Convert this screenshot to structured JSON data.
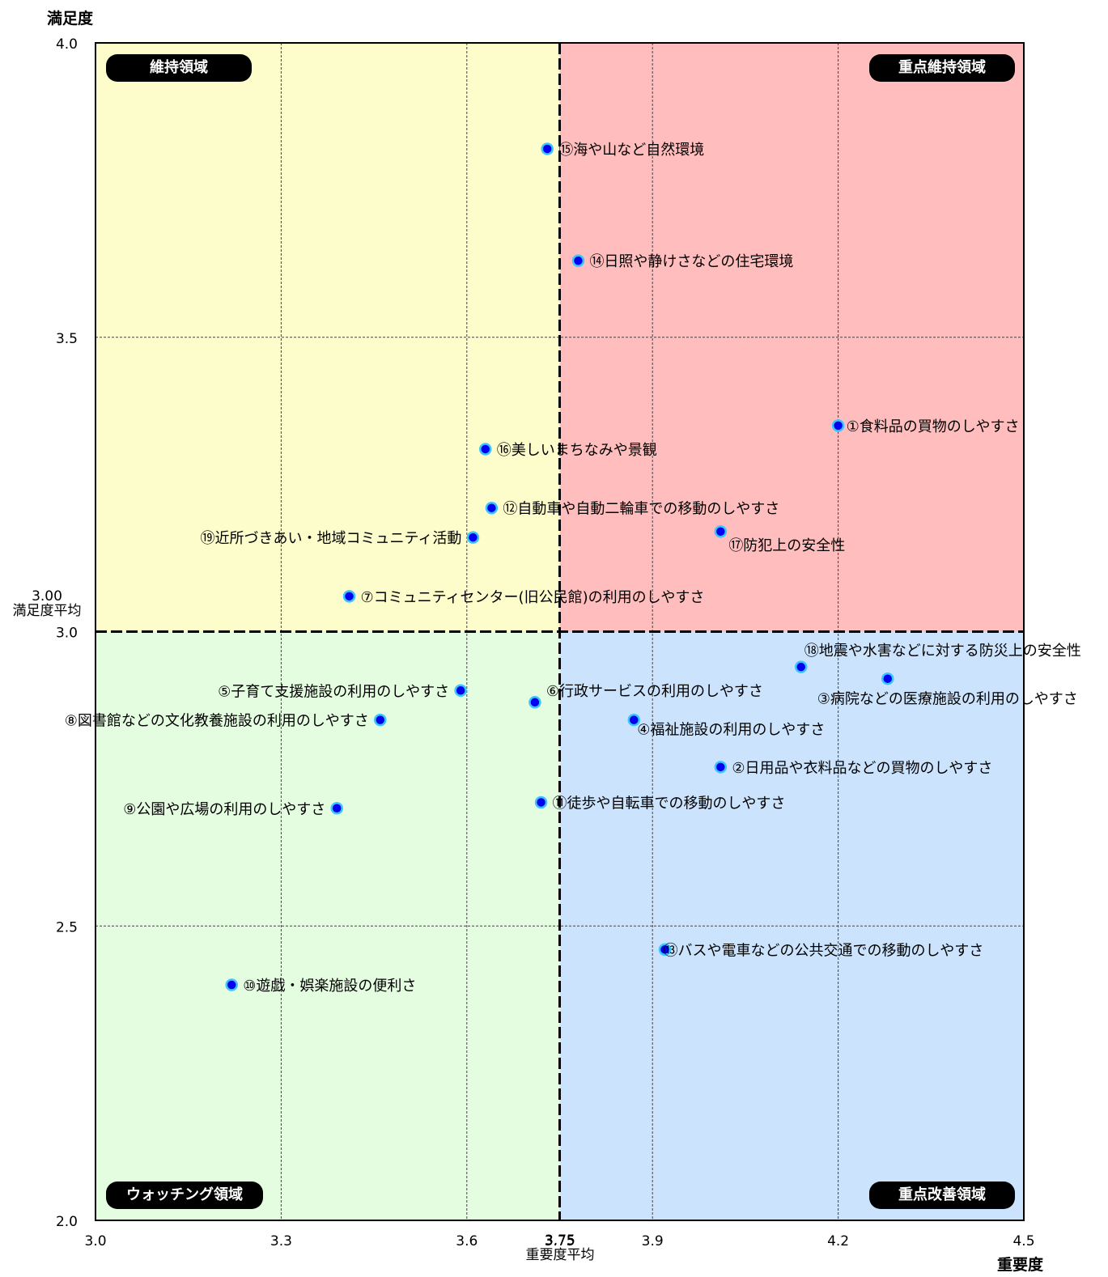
{
  "chart_data": {
    "type": "scatter",
    "title": "",
    "xlabel": "重要度",
    "ylabel": "満足度",
    "xlim": [
      3.0,
      4.5
    ],
    "ylim": [
      2.0,
      4.0
    ],
    "x_ticks": [
      "3.0",
      "3.3",
      "3.6",
      "3.75",
      "3.9",
      "4.2",
      "4.5"
    ],
    "y_ticks": [
      "4.0",
      "3.5",
      "3.0",
      "2.5",
      "2.0"
    ],
    "x_average": 3.75,
    "y_average": 3.0,
    "x_average_label": "重要度平均",
    "x_average_value": "3.75",
    "y_average_label": "満足度平均",
    "y_average_value": "3.00",
    "grid": true,
    "quadrants": [
      {
        "name": "維持領域",
        "color": "#fdfccb"
      },
      {
        "name": "重点維持領域",
        "color": "#ffbdbd"
      },
      {
        "name": "ウォッチング領域",
        "color": "#e4fde0"
      },
      {
        "name": "重点改善領域",
        "color": "#cbe3fd"
      }
    ],
    "marker_color": "#0000ee",
    "marker_outline": "#3cc4ff",
    "points": [
      {
        "label": "①食料品の買物のしやすさ",
        "x": 4.2,
        "y": 3.35
      },
      {
        "label": "②日用品や衣料品などの買物のしやすさ",
        "x": 4.01,
        "y": 2.77
      },
      {
        "label": "③病院などの医療施設の利用のしやすさ",
        "x": 4.28,
        "y": 2.92
      },
      {
        "label": "④福祉施設の利用のしやすさ",
        "x": 3.87,
        "y": 2.85
      },
      {
        "label": "⑤子育て支援施設の利用のしやすさ",
        "x": 3.59,
        "y": 2.9
      },
      {
        "label": "⑥行政サービスの利用のしやすさ",
        "x": 3.71,
        "y": 2.88
      },
      {
        "label": "⑦コミュニティセンター(旧公民館)の利用のしやすさ",
        "x": 3.41,
        "y": 3.06
      },
      {
        "label": "⑧図書館などの文化教養施設の利用のしやすさ",
        "x": 3.46,
        "y": 2.85
      },
      {
        "label": "⑨公園や広場の利用のしやすさ",
        "x": 3.39,
        "y": 2.7
      },
      {
        "label": "⑩遊戯・娯楽施設の便利さ",
        "x": 3.22,
        "y": 2.4
      },
      {
        "label": "⑪徒歩や自転車での移動のしやすさ",
        "x": 3.72,
        "y": 2.71
      },
      {
        "label": "⑫自動車や自動二輪車での移動のしやすさ",
        "x": 3.64,
        "y": 3.21
      },
      {
        "label": "⑬バスや電車などの公共交通での移動のしやすさ",
        "x": 3.92,
        "y": 2.46
      },
      {
        "label": "⑭日照や静けさなどの住宅環境",
        "x": 3.78,
        "y": 3.63
      },
      {
        "label": "⑮海や山など自然環境",
        "x": 3.73,
        "y": 3.82
      },
      {
        "label": "⑯美しいまちなみや景観",
        "x": 3.63,
        "y": 3.31
      },
      {
        "label": "⑰防犯上の安全性",
        "x": 4.01,
        "y": 3.17
      },
      {
        "label": "⑱地震や水害などに対する防災上の安全性",
        "x": 4.14,
        "y": 2.94
      },
      {
        "label": "⑲近所づきあい・地域コミュニティ活動",
        "x": 3.61,
        "y": 3.16
      }
    ]
  }
}
